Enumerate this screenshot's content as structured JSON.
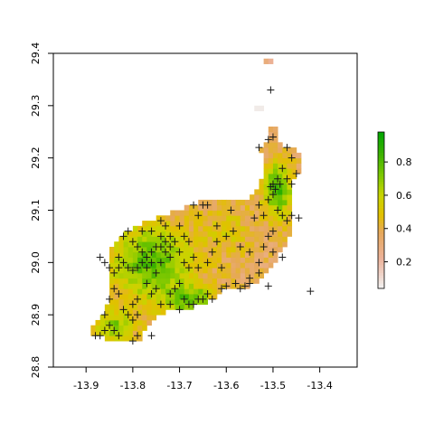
{
  "chart_data": {
    "type": "heatmap",
    "title": "",
    "xlabel": "",
    "ylabel": "",
    "xlim": [
      -13.97,
      -13.32
    ],
    "ylim": [
      28.8,
      29.4
    ],
    "x_ticks": [
      -13.9,
      -13.8,
      -13.7,
      -13.6,
      -13.5,
      -13.4
    ],
    "y_ticks": [
      28.8,
      28.9,
      29.0,
      29.1,
      29.2,
      29.3,
      29.4
    ],
    "x_tick_labels": [
      "-13.9",
      "-13.8",
      "-13.7",
      "-13.6",
      "-13.5",
      "-13.4"
    ],
    "y_tick_labels": [
      "28.8",
      "28.9",
      "29.0",
      "29.1",
      "29.2",
      "29.3",
      "29.4"
    ],
    "grid": false,
    "colorbar": {
      "placement": "right",
      "range": [
        0.04,
        0.98
      ],
      "ticks": [
        0.2,
        0.4,
        0.6,
        0.8
      ],
      "tick_labels": [
        "0.2",
        "0.4",
        "0.6",
        "0.8"
      ],
      "palette": "terrain",
      "stops": [
        {
          "v": 0.04,
          "color": "#f2f2f2"
        },
        {
          "v": 0.22,
          "color": "#ecb29a"
        },
        {
          "v": 0.38,
          "color": "#e6a85a"
        },
        {
          "v": 0.48,
          "color": "#e2c000"
        },
        {
          "v": 0.6,
          "color": "#c8d400"
        },
        {
          "v": 0.72,
          "color": "#7cc800"
        },
        {
          "v": 0.86,
          "color": "#36b000"
        },
        {
          "v": 0.98,
          "color": "#00a600"
        }
      ]
    },
    "regions": [
      {
        "name": "west-green",
        "cx": -13.76,
        "cy": 29.0,
        "rx": 0.1,
        "ry": 0.085,
        "value": 0.8
      },
      {
        "name": "south-green",
        "cx": -13.68,
        "cy": 28.93,
        "rx": 0.06,
        "ry": 0.03,
        "value": 0.82
      },
      {
        "name": "tip-green",
        "cx": -13.84,
        "cy": 28.88,
        "rx": 0.05,
        "ry": 0.03,
        "value": 0.72
      },
      {
        "name": "ne-green",
        "cx": -13.49,
        "cy": 29.14,
        "rx": 0.035,
        "ry": 0.06,
        "value": 0.85
      },
      {
        "name": "center-yellow",
        "cx": -13.6,
        "cy": 29.06,
        "rx": 0.06,
        "ry": 0.05,
        "value": 0.52
      }
    ],
    "points": [
      [
        -13.87,
        29.01
      ],
      [
        -13.42,
        28.945
      ],
      [
        -13.505,
        29.33
      ],
      [
        -13.5,
        29.24
      ],
      [
        -13.51,
        29.235
      ],
      [
        -13.53,
        29.22
      ],
      [
        -13.47,
        29.22
      ],
      [
        -13.46,
        29.2
      ],
      [
        -13.48,
        29.18
      ],
      [
        -13.49,
        29.16
      ],
      [
        -13.5,
        29.15
      ],
      [
        -13.505,
        29.145
      ],
      [
        -13.495,
        29.14
      ],
      [
        -13.485,
        29.15
      ],
      [
        -13.5,
        29.13
      ],
      [
        -13.51,
        29.12
      ],
      [
        -13.47,
        29.16
      ],
      [
        -13.46,
        29.15
      ],
      [
        -13.45,
        29.17
      ],
      [
        -13.53,
        29.11
      ],
      [
        -13.52,
        29.09
      ],
      [
        -13.54,
        29.085
      ],
      [
        -13.49,
        29.1
      ],
      [
        -13.48,
        29.09
      ],
      [
        -13.47,
        29.08
      ],
      [
        -13.46,
        29.09
      ],
      [
        -13.445,
        29.085
      ],
      [
        -13.5,
        29.06
      ],
      [
        -13.51,
        29.05
      ],
      [
        -13.52,
        29.03
      ],
      [
        -13.5,
        29.02
      ],
      [
        -13.53,
        29.0
      ],
      [
        -13.48,
        29.01
      ],
      [
        -13.55,
        29.02
      ],
      [
        -13.57,
        29.03
      ],
      [
        -13.6,
        29.05
      ],
      [
        -13.62,
        29.04
      ],
      [
        -13.585,
        29.06
      ],
      [
        -13.59,
        29.1
      ],
      [
        -13.63,
        29.02
      ],
      [
        -13.64,
        29.0
      ],
      [
        -13.66,
        28.99
      ],
      [
        -13.61,
        28.99
      ],
      [
        -13.58,
        28.96
      ],
      [
        -13.56,
        28.955
      ],
      [
        -13.55,
        28.97
      ],
      [
        -13.53,
        28.98
      ],
      [
        -13.51,
        28.955
      ],
      [
        -13.66,
        29.09
      ],
      [
        -13.64,
        29.11
      ],
      [
        -13.67,
        29.11
      ],
      [
        -13.7,
        29.07
      ],
      [
        -13.72,
        29.05
      ],
      [
        -13.73,
        29.04
      ],
      [
        -13.74,
        29.05
      ],
      [
        -13.75,
        29.03
      ],
      [
        -13.76,
        29.02
      ],
      [
        -13.77,
        29.01
      ],
      [
        -13.78,
        29.0
      ],
      [
        -13.79,
        28.99
      ],
      [
        -13.8,
        28.985
      ],
      [
        -13.81,
        28.99
      ],
      [
        -13.82,
        29.0
      ],
      [
        -13.83,
        28.99
      ],
      [
        -13.76,
        29.0
      ],
      [
        -13.77,
        28.99
      ],
      [
        -13.75,
        28.98
      ],
      [
        -13.74,
        29.0
      ],
      [
        -13.73,
        29.02
      ],
      [
        -13.72,
        29.03
      ],
      [
        -13.71,
        29.04
      ],
      [
        -13.7,
        29.02
      ],
      [
        -13.69,
        29.0
      ],
      [
        -13.68,
        28.99
      ],
      [
        -13.67,
        29.01
      ],
      [
        -13.78,
        29.02
      ],
      [
        -13.79,
        29.03
      ],
      [
        -13.8,
        29.04
      ],
      [
        -13.81,
        29.06
      ],
      [
        -13.82,
        29.05
      ],
      [
        -13.78,
        29.06
      ],
      [
        -13.76,
        29.06
      ],
      [
        -13.74,
        29.08
      ],
      [
        -13.73,
        29.07
      ],
      [
        -13.7,
        28.96
      ],
      [
        -13.71,
        28.95
      ],
      [
        -13.72,
        28.94
      ],
      [
        -13.69,
        28.93
      ],
      [
        -13.68,
        28.92
      ],
      [
        -13.66,
        28.93
      ],
      [
        -13.64,
        28.94
      ],
      [
        -13.63,
        28.93
      ],
      [
        -13.61,
        28.95
      ],
      [
        -13.75,
        28.95
      ],
      [
        -13.76,
        28.94
      ],
      [
        -13.77,
        28.96
      ],
      [
        -13.79,
        28.93
      ],
      [
        -13.8,
        28.92
      ],
      [
        -13.81,
        28.9
      ],
      [
        -13.82,
        28.91
      ],
      [
        -13.79,
        28.9
      ],
      [
        -13.8,
        28.89
      ],
      [
        -13.83,
        28.94
      ],
      [
        -13.84,
        28.95
      ],
      [
        -13.85,
        28.93
      ],
      [
        -13.86,
        28.9
      ],
      [
        -13.85,
        28.88
      ],
      [
        -13.86,
        28.87
      ],
      [
        -13.87,
        28.86
      ],
      [
        -13.88,
        28.86
      ],
      [
        -13.84,
        28.87
      ],
      [
        -13.83,
        28.86
      ],
      [
        -13.8,
        28.85
      ],
      [
        -13.79,
        28.86
      ],
      [
        -13.76,
        28.86
      ],
      [
        -13.74,
        28.92
      ],
      [
        -13.72,
        28.92
      ],
      [
        -13.7,
        28.91
      ],
      [
        -13.67,
        28.92
      ],
      [
        -13.65,
        28.93
      ],
      [
        -13.6,
        28.955
      ],
      [
        -13.57,
        28.95
      ],
      [
        -13.55,
        28.96
      ],
      [
        -13.65,
        29.11
      ],
      [
        -13.62,
        29.07
      ],
      [
        -13.86,
        29.0
      ],
      [
        -13.85,
        28.99
      ],
      [
        -13.84,
        28.98
      ],
      [
        -13.83,
        29.01
      ],
      [
        -13.69,
        29.05
      ],
      [
        -13.68,
        29.04
      ],
      [
        -13.72,
        29.01
      ],
      [
        -13.74,
        29.03
      ]
    ]
  }
}
